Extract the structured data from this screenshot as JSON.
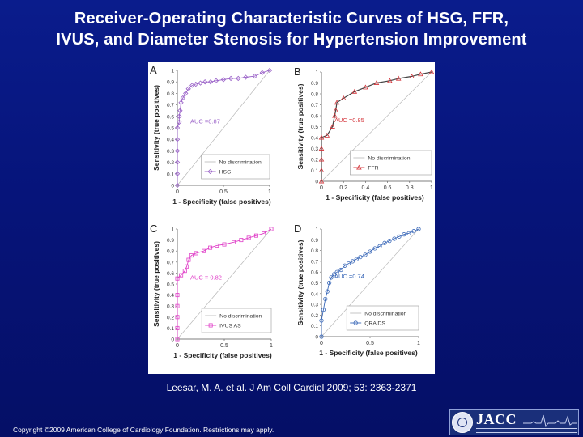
{
  "title": {
    "line1": "Receiver-Operating Characteristic Curves of HSG, FFR,",
    "line2": "IVUS, and Diameter Stenosis for Hypertension Improvement"
  },
  "citation": "Leesar, M. A. et al. J Am Coll Cardiol 2009; 53: 2363-2371",
  "copyright": "Copyright ©2009 American College of Cardiology Foundation. Restrictions may apply.",
  "logo": {
    "text": "JACC"
  },
  "colors": {
    "background": "#0a1c8c",
    "hsg": "#9a62c8",
    "ffr": "#d4343a",
    "ivus": "#e040c8",
    "qca": "#3a68b8",
    "reference": "#b8b8b8"
  },
  "chart_data": [
    {
      "type": "line",
      "panel": "A",
      "xlabel": "1 - Specificity (false positives)",
      "ylabel": "Sensitivity (true positives)",
      "xlim": [
        0,
        1
      ],
      "ylim": [
        0,
        1
      ],
      "x_ticks": [
        "0",
        "0.5",
        "1"
      ],
      "y_ticks": [
        "0",
        "0.1",
        "0.2",
        "0.3",
        "0.4",
        "0.5",
        "0.6",
        "0.7",
        "0.8",
        "0.9",
        "1"
      ],
      "auc_label": "AUC =0.87",
      "legend": [
        "No discrimination",
        "HSG"
      ],
      "legend_position": "bottom-right",
      "series": [
        {
          "name": "HSG",
          "color": "#9a62c8",
          "marker": "diamond",
          "x": [
            0,
            0,
            0,
            0,
            0,
            0,
            0.02,
            0.02,
            0.03,
            0.04,
            0.06,
            0.09,
            0.12,
            0.16,
            0.2,
            0.25,
            0.3,
            0.36,
            0.42,
            0.5,
            0.58,
            0.66,
            0.74,
            0.84,
            0.92,
            1
          ],
          "y": [
            0,
            0.1,
            0.2,
            0.3,
            0.4,
            0.5,
            0.55,
            0.6,
            0.65,
            0.72,
            0.76,
            0.8,
            0.84,
            0.87,
            0.88,
            0.89,
            0.9,
            0.9,
            0.91,
            0.92,
            0.93,
            0.93,
            0.94,
            0.95,
            0.98,
            1
          ]
        }
      ]
    },
    {
      "type": "line",
      "panel": "B",
      "xlabel": "1 - Specificity (false positives)",
      "ylabel": "Sensitivity (true positives)",
      "xlim": [
        0,
        1
      ],
      "ylim": [
        0,
        1
      ],
      "x_ticks": [
        "0",
        "0.2",
        "0.4",
        "0.6",
        "0.8",
        "1"
      ],
      "y_ticks": [
        "0",
        "0.1",
        "0.2",
        "0.3",
        "0.4",
        "0.5",
        "0.6",
        "0.7",
        "0.8",
        "0.9",
        "1"
      ],
      "auc_label": "AUC =0.85",
      "legend": [
        "No discrimination",
        "FFR"
      ],
      "legend_position": "bottom-right",
      "series": [
        {
          "name": "FFR",
          "color": "#d4343a",
          "marker": "triangle",
          "x": [
            0,
            0,
            0,
            0,
            0,
            0.05,
            0.1,
            0.12,
            0.13,
            0.14,
            0.2,
            0.3,
            0.4,
            0.5,
            0.62,
            0.7,
            0.82,
            0.9,
            1
          ],
          "y": [
            0,
            0.1,
            0.2,
            0.3,
            0.4,
            0.42,
            0.5,
            0.6,
            0.65,
            0.72,
            0.76,
            0.82,
            0.86,
            0.9,
            0.92,
            0.94,
            0.96,
            0.98,
            1
          ]
        }
      ]
    },
    {
      "type": "line",
      "panel": "C",
      "xlabel": "1 - Specificity (false positives)",
      "ylabel": "Sensitivity (true positives)",
      "xlim": [
        0,
        1
      ],
      "ylim": [
        0,
        1
      ],
      "x_ticks": [
        "0",
        "0.5",
        "1"
      ],
      "y_ticks": [
        "0",
        "0.1",
        "0.2",
        "0.3",
        "0.4",
        "0.5",
        "0.6",
        "0.7",
        "0.8",
        "0.9",
        "1"
      ],
      "auc_label": "AUC = 0.82",
      "legend": [
        "No discrimination",
        "IVUS AS"
      ],
      "legend_position": "bottom-right",
      "series": [
        {
          "name": "IVUS AS",
          "color": "#e040c8",
          "marker": "square",
          "x": [
            0,
            0,
            0,
            0,
            0,
            0,
            0.04,
            0.08,
            0.1,
            0.12,
            0.15,
            0.2,
            0.28,
            0.35,
            0.42,
            0.5,
            0.6,
            0.68,
            0.76,
            0.84,
            0.92,
            1
          ],
          "y": [
            0,
            0.1,
            0.2,
            0.3,
            0.4,
            0.55,
            0.58,
            0.62,
            0.66,
            0.72,
            0.76,
            0.78,
            0.8,
            0.83,
            0.85,
            0.86,
            0.88,
            0.9,
            0.92,
            0.94,
            0.96,
            1
          ]
        }
      ]
    },
    {
      "type": "line",
      "panel": "D",
      "xlabel": "1 - Specificity (false positives)",
      "ylabel": "Sensitivity (true positives)",
      "xlim": [
        0,
        1
      ],
      "ylim": [
        0,
        1
      ],
      "x_ticks": [
        "0",
        "0.5",
        "1"
      ],
      "y_ticks": [
        "0",
        "0.1",
        "0.2",
        "0.3",
        "0.4",
        "0.5",
        "0.6",
        "0.7",
        "0.8",
        "0.9",
        "1"
      ],
      "auc_label": "AUC =0.74",
      "legend": [
        "No discrimination",
        "QRA DS"
      ],
      "legend_position": "bottom-right",
      "series": [
        {
          "name": "QRA DS",
          "color": "#3a68b8",
          "marker": "circle",
          "x": [
            0,
            0,
            0.02,
            0.04,
            0.06,
            0.08,
            0.1,
            0.13,
            0.16,
            0.2,
            0.24,
            0.28,
            0.32,
            0.36,
            0.4,
            0.45,
            0.5,
            0.55,
            0.6,
            0.65,
            0.7,
            0.75,
            0.8,
            0.85,
            0.9,
            0.95,
            1
          ],
          "y": [
            0,
            0.15,
            0.25,
            0.35,
            0.42,
            0.5,
            0.55,
            0.58,
            0.6,
            0.62,
            0.66,
            0.68,
            0.7,
            0.72,
            0.74,
            0.76,
            0.79,
            0.82,
            0.84,
            0.87,
            0.89,
            0.91,
            0.93,
            0.95,
            0.96,
            0.98,
            1
          ]
        }
      ]
    }
  ]
}
